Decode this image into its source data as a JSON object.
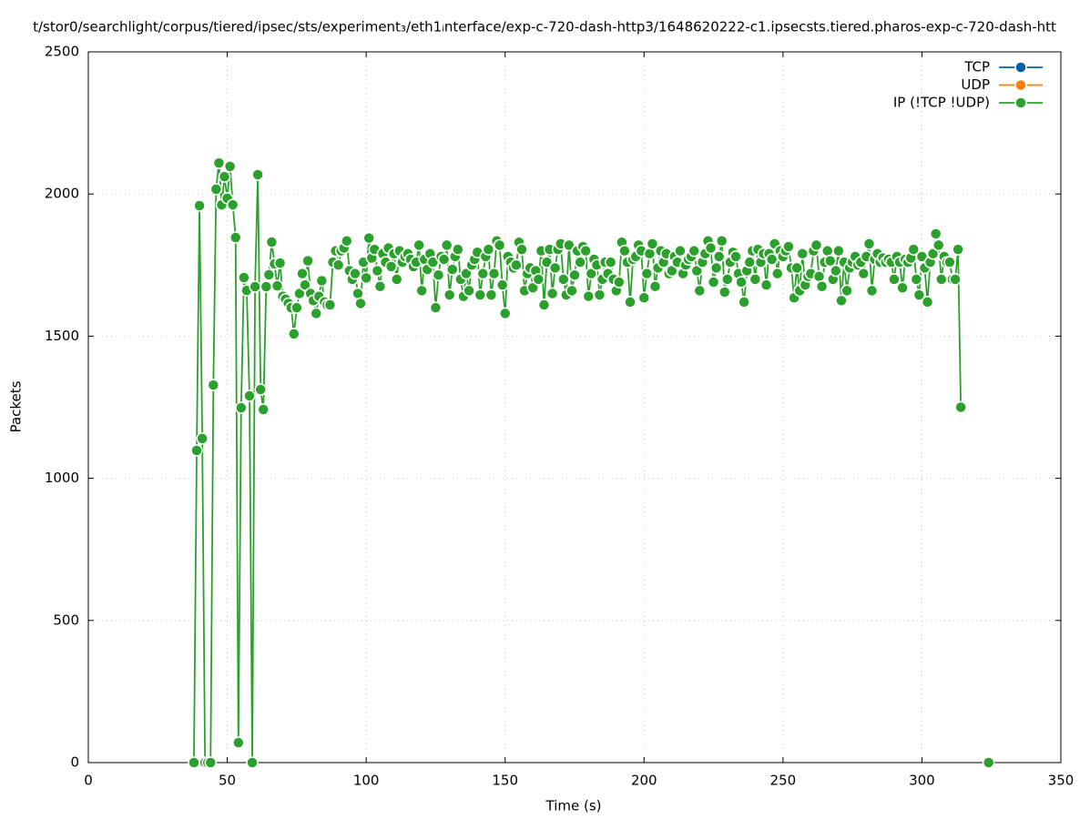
{
  "chart_data": {
    "type": "line",
    "title": "t/stor0/searchlight/corpus/tiered/ipsec/sts/experiment₃/eth1ᵢnterface/exp-c-720-dash-http3/1648620222-c1.ipsecsts.tiered.pharos-exp-c-720-dash-htt",
    "xlabel": "Time (s)",
    "ylabel": "Packets",
    "xlim": [
      0,
      350
    ],
    "xticks": [
      0,
      50,
      100,
      150,
      200,
      250,
      300,
      350
    ],
    "ylim": [
      0,
      2500
    ],
    "yticks": [
      0,
      500,
      1000,
      1500,
      2000,
      2500
    ],
    "grid": true,
    "legend": "top-right",
    "series": [
      {
        "name": "TCP",
        "color": "#0060ad",
        "x": [],
        "values": []
      },
      {
        "name": "UDP",
        "color": "#ff7f0e",
        "x": [],
        "values": []
      },
      {
        "name": "IP (!TCP  !UDP)",
        "color": "#2ca02c",
        "x": [
          38,
          39,
          40,
          41,
          42,
          43,
          44,
          45,
          46,
          47,
          48,
          49,
          50,
          51,
          52,
          53,
          54,
          55,
          56,
          57,
          58,
          59,
          60,
          61,
          62,
          63,
          64,
          65,
          66,
          67,
          68,
          69,
          70,
          71,
          72,
          73,
          74,
          75,
          76,
          77,
          78,
          79,
          80,
          81,
          82,
          83,
          84,
          85,
          86,
          87,
          88,
          89,
          90,
          91,
          92,
          93,
          94,
          95,
          96,
          97,
          98,
          99,
          100,
          101,
          102,
          103,
          104,
          105,
          106,
          107,
          108,
          109,
          110,
          111,
          112,
          113,
          114,
          115,
          116,
          117,
          118,
          119,
          120,
          121,
          122,
          123,
          124,
          125,
          126,
          127,
          128,
          129,
          130,
          131,
          132,
          133,
          134,
          135,
          136,
          137,
          138,
          139,
          140,
          141,
          142,
          143,
          144,
          145,
          146,
          147,
          148,
          149,
          150,
          151,
          152,
          153,
          154,
          155,
          156,
          157,
          158,
          159,
          160,
          161,
          162,
          163,
          164,
          165,
          166,
          167,
          168,
          169,
          170,
          171,
          172,
          173,
          174,
          175,
          176,
          177,
          178,
          179,
          180,
          181,
          182,
          183,
          184,
          185,
          186,
          187,
          188,
          189,
          190,
          191,
          192,
          193,
          194,
          195,
          196,
          197,
          198,
          199,
          200,
          201,
          202,
          203,
          204,
          205,
          206,
          207,
          208,
          209,
          210,
          211,
          212,
          213,
          214,
          215,
          216,
          217,
          218,
          219,
          220,
          221,
          222,
          223,
          224,
          225,
          226,
          227,
          228,
          229,
          230,
          231,
          232,
          233,
          234,
          235,
          236,
          237,
          238,
          239,
          240,
          241,
          242,
          243,
          244,
          245,
          246,
          247,
          248,
          249,
          250,
          251,
          252,
          253,
          254,
          255,
          256,
          257,
          258,
          259,
          260,
          261,
          262,
          263,
          264,
          265,
          266,
          267,
          268,
          269,
          270,
          271,
          272,
          273,
          274,
          275,
          276,
          277,
          278,
          279,
          280,
          281,
          282,
          283,
          284,
          285,
          286,
          287,
          288,
          289,
          290,
          291,
          292,
          293,
          294,
          295,
          296,
          297,
          298,
          299,
          300,
          301,
          302,
          303,
          304,
          305,
          306,
          307,
          308,
          309,
          310,
          311,
          312,
          313,
          314,
          320,
          324
        ],
        "values": [
          0,
          1098,
          1959,
          1140,
          0,
          0,
          0,
          1328,
          2017,
          2109,
          1962,
          2061,
          1985,
          2097,
          1962,
          1847,
          70,
          1248,
          1706,
          1661,
          1290,
          0,
          1674,
          2068,
          1312,
          1242,
          1674,
          1716,
          1831,
          1754,
          1677,
          1757,
          1640,
          1630,
          1615,
          1600,
          1508,
          1600,
          1650,
          1720,
          1680,
          1765,
          1650,
          1625,
          1580,
          1640,
          1695,
          1620,
          1610,
          1610,
          1760,
          1800,
          1750,
          1800,
          1810,
          1835,
          1730,
          1700,
          1720,
          1650,
          1615,
          1760,
          1705,
          1845,
          1775,
          1805,
          1730,
          1675,
          1790,
          1760,
          1810,
          1745,
          1790,
          1700,
          1800,
          1760,
          1780,
          1790,
          1770,
          1745,
          1760,
          1820,
          1660,
          1770,
          1735,
          1790,
          1760,
          1600,
          1715,
          1780,
          1770,
          1820,
          1645,
          1735,
          1780,
          1805,
          1700,
          1640,
          1720,
          1660,
          1750,
          1770,
          1795,
          1645,
          1720,
          1780,
          1805,
          1645,
          1720,
          1835,
          1820,
          1680,
          1580,
          1780,
          1760,
          1740,
          1750,
          1830,
          1805,
          1660,
          1720,
          1740,
          1670,
          1730,
          1700,
          1800,
          1610,
          1760,
          1805,
          1650,
          1740,
          1805,
          1825,
          1700,
          1645,
          1820,
          1660,
          1715,
          1800,
          1760,
          1815,
          1800,
          1640,
          1720,
          1770,
          1750,
          1645,
          1700,
          1760,
          1720,
          1760,
          1700,
          1660,
          1690,
          1830,
          1800,
          1760,
          1620,
          1770,
          1780,
          1820,
          1800,
          1635,
          1720,
          1790,
          1825,
          1675,
          1740,
          1800,
          1760,
          1790,
          1720,
          1730,
          1780,
          1760,
          1800,
          1720,
          1750,
          1770,
          1780,
          1800,
          1730,
          1660,
          1760,
          1790,
          1835,
          1810,
          1690,
          1740,
          1780,
          1835,
          1655,
          1700,
          1760,
          1795,
          1780,
          1720,
          1690,
          1620,
          1730,
          1760,
          1800,
          1700,
          1805,
          1760,
          1790,
          1680,
          1790,
          1770,
          1825,
          1720,
          1800,
          1780,
          1800,
          1815,
          1740,
          1635,
          1740,
          1660,
          1790,
          1680,
          1710,
          1720,
          1800,
          1820,
          1710,
          1675,
          1760,
          1800,
          1765,
          1700,
          1730,
          1800,
          1625,
          1760,
          1660,
          1740,
          1760,
          1780,
          1750,
          1760,
          1720,
          1780,
          1825,
          1660,
          1770,
          1790,
          1760,
          1775,
          1760,
          1770,
          1760,
          1700,
          1780,
          1760,
          1670,
          1770,
          1760,
          1775,
          1805,
          1700,
          1645,
          1780,
          1740,
          1620,
          1760,
          1790,
          1860,
          1820,
          1700,
          1780,
          1760,
          1760,
          1700,
          1700,
          1805,
          1250,
          null,
          0
        ]
      }
    ]
  }
}
